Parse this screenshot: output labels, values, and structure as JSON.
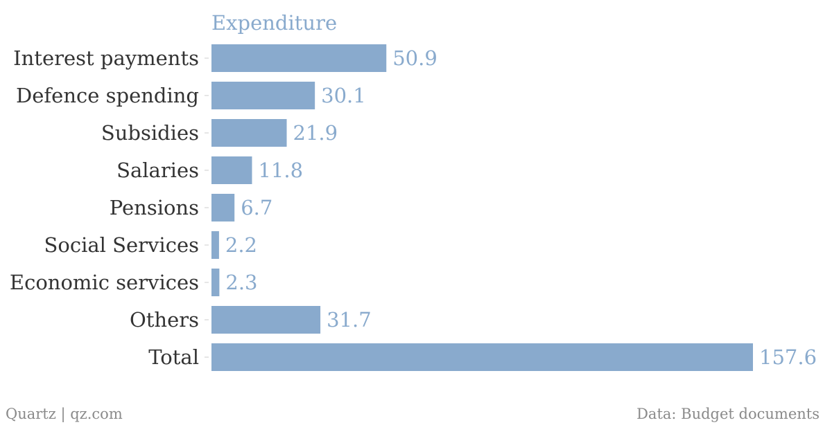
{
  "chart_data": {
    "type": "bar",
    "orientation": "horizontal",
    "series_title": "Expenditure",
    "categories": [
      "Interest payments",
      "Defence spending",
      "Subsidies",
      "Salaries",
      "Pensions",
      "Social Services",
      "Economic services",
      "Others",
      "Total"
    ],
    "values": [
      50.9,
      30.1,
      21.9,
      11.8,
      6.7,
      2.2,
      2.3,
      31.7,
      157.6
    ],
    "value_labels": [
      "50.9",
      "30.1",
      "21.9",
      "11.8",
      "6.7",
      "2.2",
      "2.3",
      "31.7",
      "157.6"
    ],
    "xlim": [
      0,
      157.6
    ],
    "grid": false,
    "bar_color": "#89aacd",
    "label_color": "#89aacd",
    "axis_text_color": "#333333"
  },
  "footer": {
    "source_left": "Quartz | qz.com",
    "source_right": "Data: Budget documents"
  }
}
